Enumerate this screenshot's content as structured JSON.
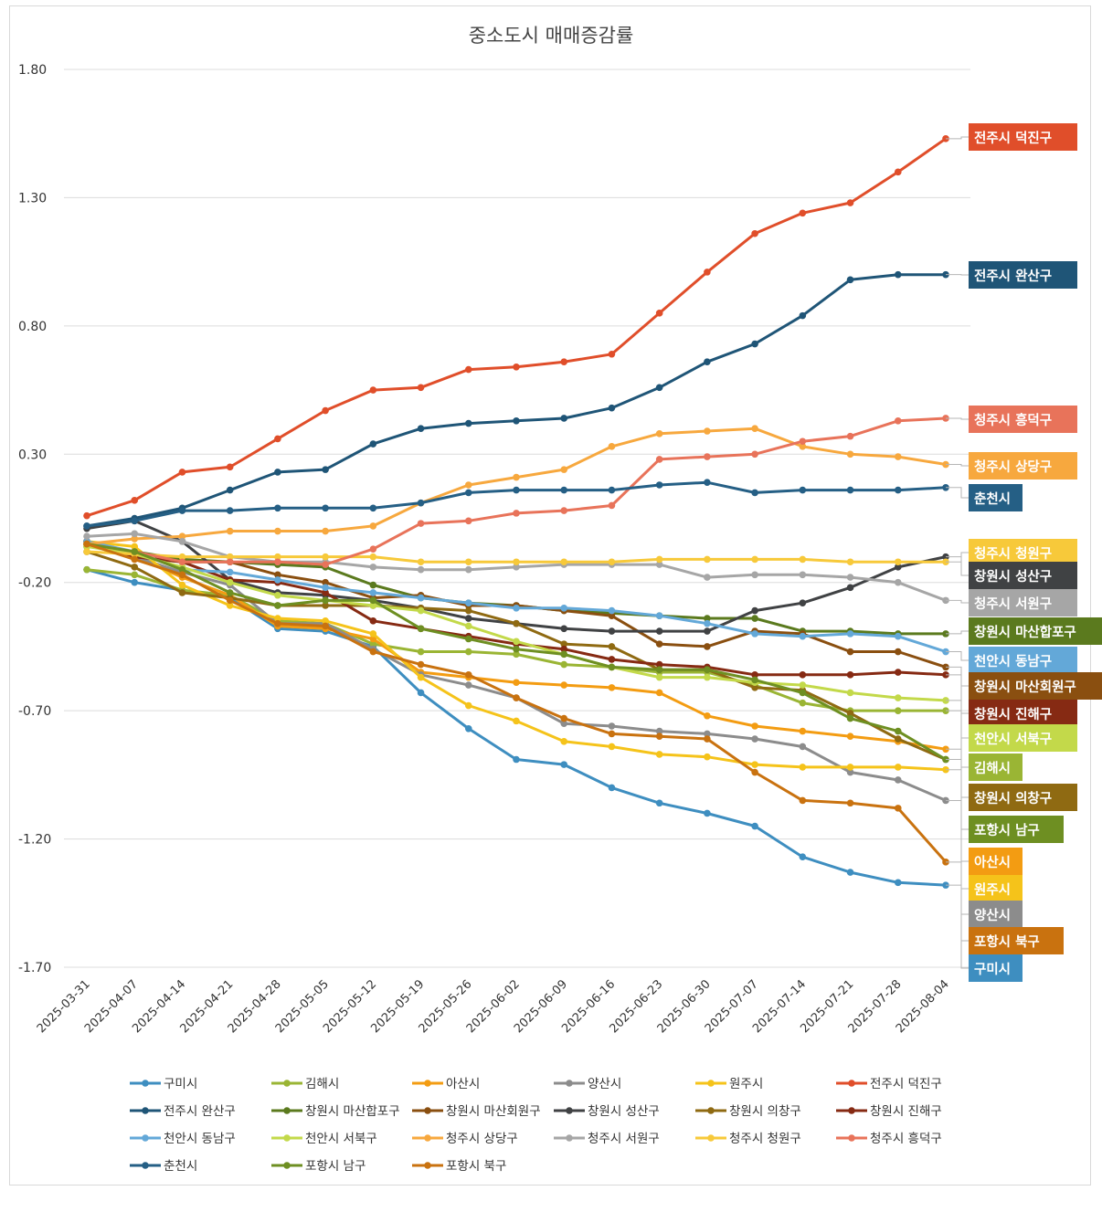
{
  "chart_data": {
    "type": "line",
    "title": "중소도시 매매증감률",
    "xlabel": "",
    "ylabel": "",
    "ylim": [
      -1.7,
      1.8
    ],
    "yticks": [
      "1.80",
      "1.30",
      "0.80",
      "0.30",
      "-0.20",
      "-0.70",
      "-1.20",
      "-1.70"
    ],
    "ytick_values": [
      1.8,
      1.3,
      0.8,
      0.3,
      -0.2,
      -0.7,
      -1.2,
      -1.7
    ],
    "grid": true,
    "legend_position": "bottom",
    "categories": [
      "2025-03-31",
      "2025-04-07",
      "2025-04-14",
      "2025-04-21",
      "2025-04-28",
      "2025-05-05",
      "2025-05-12",
      "2025-05-19",
      "2025-05-26",
      "2025-06-02",
      "2025-06-09",
      "2025-06-16",
      "2025-06-23",
      "2025-06-30",
      "2025-07-07",
      "2025-07-14",
      "2025-07-21",
      "2025-07-28",
      "2025-08-04"
    ],
    "series": [
      {
        "name": "구미시",
        "color": "#3e8ec0",
        "values": [
          -0.15,
          -0.2,
          -0.23,
          -0.26,
          -0.38,
          -0.39,
          -0.45,
          -0.63,
          -0.77,
          -0.89,
          -0.91,
          -1.0,
          -1.06,
          -1.1,
          -1.15,
          -1.27,
          -1.33,
          -1.37,
          -1.38
        ]
      },
      {
        "name": "김해시",
        "color": "#9ab534",
        "values": [
          -0.15,
          -0.17,
          -0.23,
          -0.25,
          -0.35,
          -0.36,
          -0.44,
          -0.47,
          -0.47,
          -0.48,
          -0.52,
          -0.53,
          -0.55,
          -0.55,
          -0.6,
          -0.67,
          -0.7,
          -0.7,
          -0.7
        ]
      },
      {
        "name": "아산시",
        "color": "#f39c12",
        "values": [
          -0.05,
          -0.1,
          -0.18,
          -0.25,
          -0.37,
          -0.38,
          -0.42,
          -0.55,
          -0.57,
          -0.59,
          -0.6,
          -0.61,
          -0.63,
          -0.72,
          -0.76,
          -0.78,
          -0.8,
          -0.82,
          -0.85
        ]
      },
      {
        "name": "양산시",
        "color": "#8c8c8c",
        "values": [
          -0.05,
          -0.1,
          -0.16,
          -0.21,
          -0.36,
          -0.36,
          -0.46,
          -0.56,
          -0.6,
          -0.65,
          -0.75,
          -0.76,
          -0.78,
          -0.79,
          -0.81,
          -0.84,
          -0.94,
          -0.97,
          -1.05
        ]
      },
      {
        "name": "원주시",
        "color": "#f5c31a",
        "values": [
          -0.04,
          -0.06,
          -0.21,
          -0.29,
          -0.34,
          -0.35,
          -0.4,
          -0.57,
          -0.68,
          -0.74,
          -0.82,
          -0.84,
          -0.87,
          -0.88,
          -0.91,
          -0.92,
          -0.92,
          -0.92,
          -0.93
        ]
      },
      {
        "name": "전주시 덕진구",
        "color": "#e04e2a",
        "values": [
          0.06,
          0.12,
          0.23,
          0.25,
          0.36,
          0.47,
          0.55,
          0.56,
          0.63,
          0.64,
          0.66,
          0.69,
          0.85,
          1.01,
          1.16,
          1.24,
          1.28,
          1.4,
          1.53
        ]
      },
      {
        "name": "전주시 완산구",
        "color": "#1f5577",
        "values": [
          0.02,
          0.05,
          0.09,
          0.16,
          0.23,
          0.24,
          0.34,
          0.4,
          0.42,
          0.43,
          0.44,
          0.48,
          0.56,
          0.66,
          0.73,
          0.84,
          0.98,
          1.0,
          1.0
        ]
      },
      {
        "name": "창원시 마산합포구",
        "color": "#5b7a1e",
        "values": [
          -0.06,
          -0.08,
          -0.11,
          -0.12,
          -0.13,
          -0.14,
          -0.21,
          -0.26,
          -0.28,
          -0.29,
          -0.31,
          -0.32,
          -0.33,
          -0.34,
          -0.34,
          -0.39,
          -0.39,
          -0.4,
          -0.4
        ]
      },
      {
        "name": "창원시 마산회원구",
        "color": "#8a4f10",
        "values": [
          -0.04,
          -0.1,
          -0.12,
          -0.12,
          -0.17,
          -0.2,
          -0.26,
          -0.25,
          -0.29,
          -0.29,
          -0.31,
          -0.33,
          -0.44,
          -0.45,
          -0.39,
          -0.4,
          -0.47,
          -0.47,
          -0.53
        ]
      },
      {
        "name": "창원시 성산구",
        "color": "#404244",
        "values": [
          0.01,
          0.04,
          -0.04,
          -0.19,
          -0.24,
          -0.25,
          -0.27,
          -0.3,
          -0.34,
          -0.36,
          -0.38,
          -0.39,
          -0.39,
          -0.39,
          -0.31,
          -0.28,
          -0.22,
          -0.14,
          -0.1
        ]
      },
      {
        "name": "창원시 의창구",
        "color": "#8f6a12",
        "values": [
          -0.08,
          -0.14,
          -0.24,
          -0.26,
          -0.29,
          -0.29,
          -0.29,
          -0.3,
          -0.31,
          -0.36,
          -0.44,
          -0.45,
          -0.54,
          -0.54,
          -0.61,
          -0.62,
          -0.71,
          -0.81,
          -0.89
        ]
      },
      {
        "name": "창원시 진해구",
        "color": "#862a13",
        "values": [
          -0.04,
          -0.1,
          -0.12,
          -0.19,
          -0.2,
          -0.24,
          -0.35,
          -0.38,
          -0.41,
          -0.44,
          -0.46,
          -0.5,
          -0.52,
          -0.53,
          -0.56,
          -0.56,
          -0.56,
          -0.55,
          -0.56
        ]
      },
      {
        "name": "천안시 동남구",
        "color": "#63a8d8",
        "values": [
          -0.04,
          -0.08,
          -0.15,
          -0.16,
          -0.19,
          -0.22,
          -0.24,
          -0.26,
          -0.28,
          -0.3,
          -0.3,
          -0.31,
          -0.33,
          -0.36,
          -0.4,
          -0.41,
          -0.4,
          -0.41,
          -0.47
        ]
      },
      {
        "name": "천안시 서북구",
        "color": "#c3d94a",
        "values": [
          -0.06,
          -0.09,
          -0.14,
          -0.2,
          -0.25,
          -0.27,
          -0.29,
          -0.31,
          -0.37,
          -0.43,
          -0.48,
          -0.53,
          -0.57,
          -0.57,
          -0.59,
          -0.6,
          -0.63,
          -0.65,
          -0.66
        ]
      },
      {
        "name": "청주시 상당구",
        "color": "#f7a83e",
        "values": [
          -0.05,
          -0.03,
          -0.02,
          0.0,
          0.0,
          0.0,
          0.02,
          0.11,
          0.18,
          0.21,
          0.24,
          0.33,
          0.38,
          0.39,
          0.4,
          0.33,
          0.3,
          0.29,
          0.26
        ]
      },
      {
        "name": "청주시 서원구",
        "color": "#a6a6a6",
        "values": [
          -0.02,
          -0.01,
          -0.04,
          -0.1,
          -0.12,
          -0.12,
          -0.14,
          -0.15,
          -0.15,
          -0.14,
          -0.13,
          -0.13,
          -0.13,
          -0.18,
          -0.17,
          -0.17,
          -0.18,
          -0.2,
          -0.27
        ]
      },
      {
        "name": "청주시 청원구",
        "color": "#f7c93a",
        "values": [
          -0.08,
          -0.09,
          -0.1,
          -0.1,
          -0.1,
          -0.1,
          -0.1,
          -0.12,
          -0.12,
          -0.12,
          -0.12,
          -0.12,
          -0.11,
          -0.11,
          -0.11,
          -0.11,
          -0.12,
          -0.12,
          -0.12
        ]
      },
      {
        "name": "청주시 흥덕구",
        "color": "#e8735a",
        "values": [
          -0.05,
          -0.08,
          -0.12,
          -0.12,
          -0.12,
          -0.13,
          -0.07,
          0.03,
          0.04,
          0.07,
          0.08,
          0.1,
          0.28,
          0.29,
          0.3,
          0.35,
          0.37,
          0.43,
          0.44
        ]
      },
      {
        "name": "춘천시",
        "color": "#255f85",
        "values": [
          0.02,
          0.04,
          0.08,
          0.08,
          0.09,
          0.09,
          0.09,
          0.11,
          0.15,
          0.16,
          0.16,
          0.16,
          0.18,
          0.19,
          0.15,
          0.16,
          0.16,
          0.16,
          0.17
        ]
      },
      {
        "name": "포항시 남구",
        "color": "#6e8f22",
        "values": [
          -0.05,
          -0.08,
          -0.15,
          -0.24,
          -0.29,
          -0.27,
          -0.27,
          -0.38,
          -0.42,
          -0.46,
          -0.48,
          -0.53,
          -0.54,
          -0.54,
          -0.58,
          -0.63,
          -0.73,
          -0.78,
          -0.89
        ]
      },
      {
        "name": "포항시 북구",
        "color": "#c9720f",
        "values": [
          -0.05,
          -0.11,
          -0.17,
          -0.27,
          -0.36,
          -0.37,
          -0.47,
          -0.52,
          -0.56,
          -0.65,
          -0.73,
          -0.79,
          -0.8,
          -0.81,
          -0.94,
          -1.05,
          -1.06,
          -1.08,
          -1.29
        ]
      }
    ],
    "end_labels": [
      {
        "text": "전주시 덕진구",
        "color": "#e04e2a"
      },
      {
        "text": "전주시 완산구",
        "color": "#1f5577"
      },
      {
        "text": "청주시 흥덕구",
        "color": "#e8735a"
      },
      {
        "text": "청주시 상당구",
        "color": "#f7a83e"
      },
      {
        "text": "춘천시",
        "color": "#255f85"
      },
      {
        "text": "청주시 청원구",
        "color": "#f7c93a"
      },
      {
        "text": "창원시 성산구",
        "color": "#404244"
      },
      {
        "text": "청주시 서원구",
        "color": "#a6a6a6"
      },
      {
        "text": "창원시 마산합포구",
        "color": "#5b7a1e"
      },
      {
        "text": "천안시 동남구",
        "color": "#63a8d8"
      },
      {
        "text": "창원시 마산회원구",
        "color": "#8a4f10"
      },
      {
        "text": "창원시 진해구",
        "color": "#862a13"
      },
      {
        "text": "천안시 서북구",
        "color": "#c3d94a"
      },
      {
        "text": "김해시",
        "color": "#9ab534"
      },
      {
        "text": "창원시 의창구",
        "color": "#8f6a12"
      },
      {
        "text": "포항시 남구",
        "color": "#6e8f22"
      },
      {
        "text": "아산시",
        "color": "#f39c12"
      },
      {
        "text": "원주시",
        "color": "#f5c31a"
      },
      {
        "text": "양산시",
        "color": "#8c8c8c"
      },
      {
        "text": "포항시 북구",
        "color": "#c9720f"
      },
      {
        "text": "구미시",
        "color": "#3e8ec0"
      }
    ]
  }
}
